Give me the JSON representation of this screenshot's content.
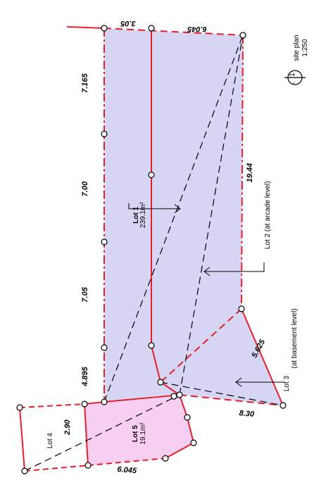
{
  "colors": {
    "boundary": "#e4202a",
    "lot_main_fill": "#d6d6f4",
    "lot5_fill": "#f7cff2",
    "dashed_line": "#000000",
    "text": "#000000"
  },
  "dimensions": {
    "top_left": "3.05",
    "top_right": "6.045",
    "left_segment_1": "7.165",
    "left_segment_2": "7.00",
    "left_segment_3": "7.05",
    "left_segment_4": "4.895",
    "right_side": "19.44",
    "diag_5": "5.625",
    "bottom": "8.30",
    "lot4_width": "2.90",
    "lot5_bottom": "6.045"
  },
  "lots": {
    "lot1_name": "Lot 1",
    "lot1_area": "239.1m²",
    "lot2_label": "Lot 2 (at arcade level)",
    "lot3_name": "Lot 3",
    "lot3_note": "(at basement level)",
    "lot4_name": "Lot 4",
    "lot5_name": "Lot 5",
    "lot5_area": "19.1m²"
  },
  "section_marker": {
    "top": "1",
    "bottom": "-"
  },
  "site_plan": {
    "title": "site plan",
    "scale": "1:250"
  }
}
